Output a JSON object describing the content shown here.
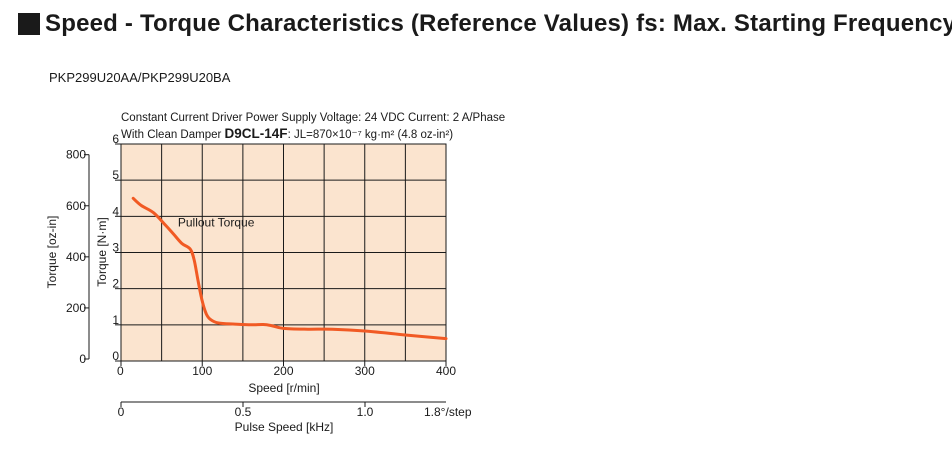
{
  "heading": {
    "title": "Speed - Torque Characteristics (Reference Values) fs: Max. Starting Frequency"
  },
  "model": "PKP299U20AA/PKP299U20BA",
  "chart_data": {
    "type": "line",
    "title": "",
    "conditions": {
      "line1": "Constant Current Driver  Power Supply Voltage: 24 VDC  Current: 2 A/Phase",
      "line2_prefix": "With Clean Damper ",
      "line2_damper": "D9CL-14F",
      "line2_inertia": ": JL=870×10⁻⁷ kg·m² (4.8 oz-in²)"
    },
    "xlabel": "Speed [r/min]",
    "xlim": [
      0,
      400
    ],
    "xticks": [
      0,
      100,
      200,
      300,
      400
    ],
    "x2label": "Pulse Speed [kHz]",
    "x2ticks": [
      "0",
      "0.5",
      "1.0"
    ],
    "x2suffix": "1.8°/step",
    "ylabel": "Torque [N·m]",
    "ylim": [
      0,
      6
    ],
    "yticks": [
      0,
      1,
      2,
      3,
      4,
      5,
      6
    ],
    "ylabel2": "Torque [oz-in]",
    "yticks2": [
      0,
      200,
      400,
      600,
      800
    ],
    "grid": true,
    "series": [
      {
        "name": "Pullout Torque",
        "color": "#f15a24",
        "x": [
          15,
          25,
          40,
          55,
          65,
          75,
          85,
          90,
          95,
          100,
          105,
          110,
          120,
          140,
          160,
          175,
          185,
          200,
          230,
          260,
          300,
          350,
          400
        ],
        "y": [
          4.5,
          4.3,
          4.1,
          3.75,
          3.5,
          3.25,
          3.1,
          2.8,
          2.2,
          1.65,
          1.3,
          1.15,
          1.05,
          1.02,
          1.0,
          1.01,
          0.98,
          0.9,
          0.88,
          0.88,
          0.83,
          0.72,
          0.62
        ]
      }
    ]
  }
}
